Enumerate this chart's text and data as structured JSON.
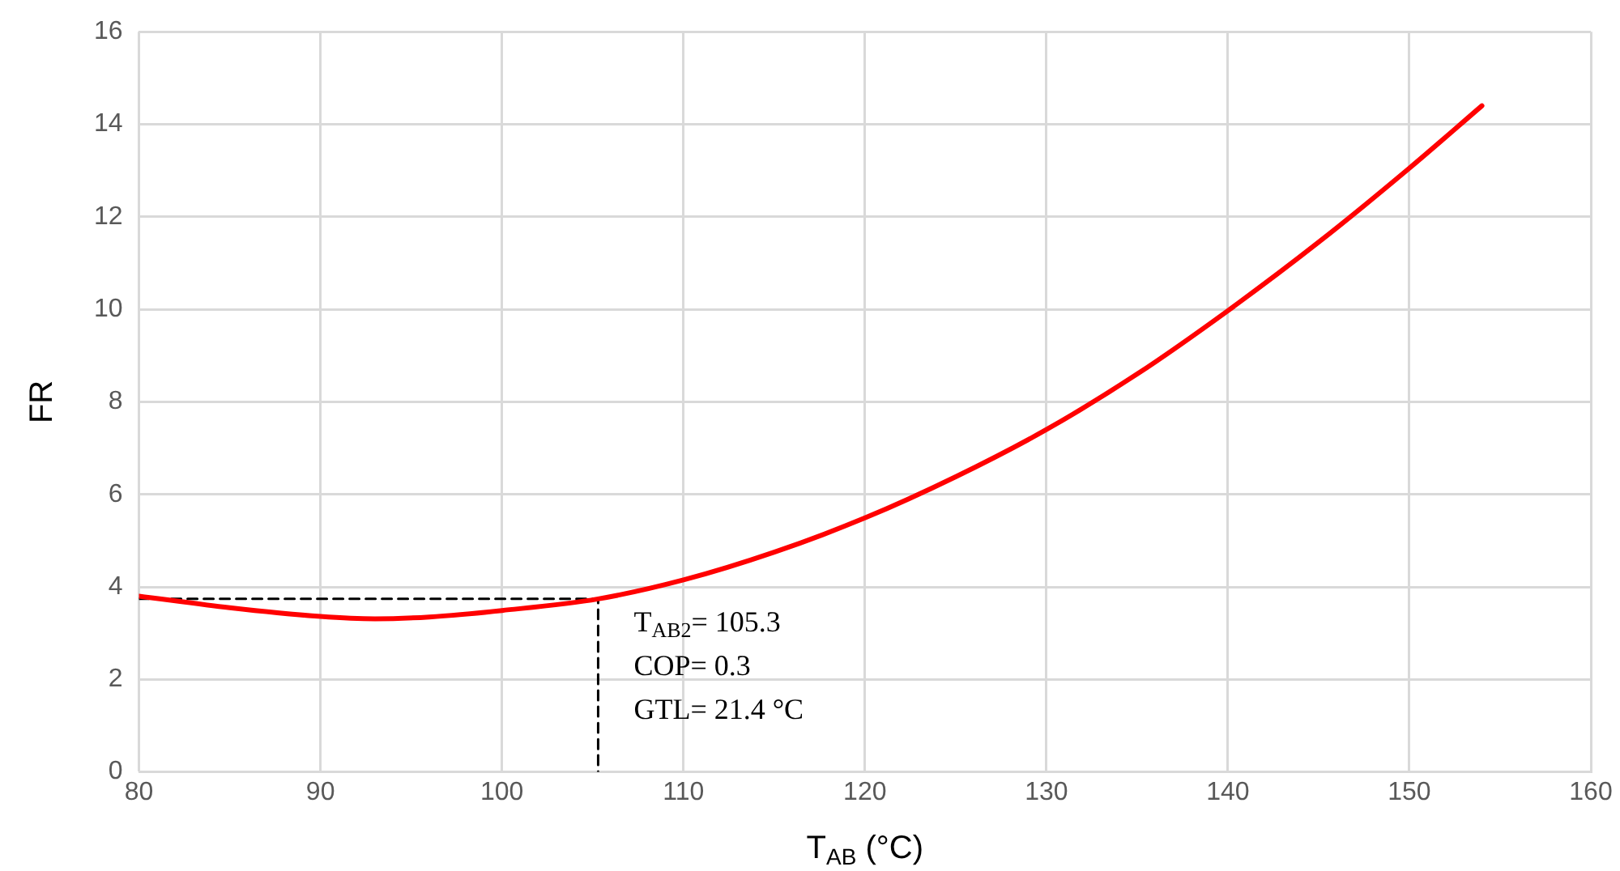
{
  "chart_data": {
    "type": "line",
    "xlabel": "T$_{AB}$ (°C)",
    "ylabel": "FR",
    "xlim": [
      80,
      160
    ],
    "xticks": [
      80,
      90,
      100,
      110,
      120,
      130,
      140,
      150,
      160
    ],
    "ylim": [
      0,
      16
    ],
    "yticks": [
      0,
      2,
      4,
      6,
      8,
      10,
      12,
      14,
      16
    ],
    "grid": true,
    "legend": false,
    "marker": "none",
    "series": [
      {
        "color": "#ff0000",
        "x": [
          80,
          85,
          90,
          93,
          96,
          100,
          105.3,
          110,
          115,
          120,
          125,
          130,
          135,
          140,
          145,
          150,
          154
        ],
        "values": [
          3.8,
          3.55,
          3.36,
          3.31,
          3.35,
          3.49,
          3.74,
          4.15,
          4.75,
          5.49,
          6.38,
          7.4,
          8.6,
          9.97,
          11.45,
          13.05,
          14.4
        ]
      },
      {
        "color": "#000000",
        "line_style": "dashed",
        "x": [
          80,
          105.3,
          105.3
        ],
        "values": [
          3.74,
          3.74,
          0
        ]
      }
    ],
    "annotations": [
      {
        "text": "T$_{AB2}$= 105.3\nCOP= 0.3\nGTL= 21.4 °C",
        "x": 105.3,
        "y": 3.74
      }
    ]
  }
}
